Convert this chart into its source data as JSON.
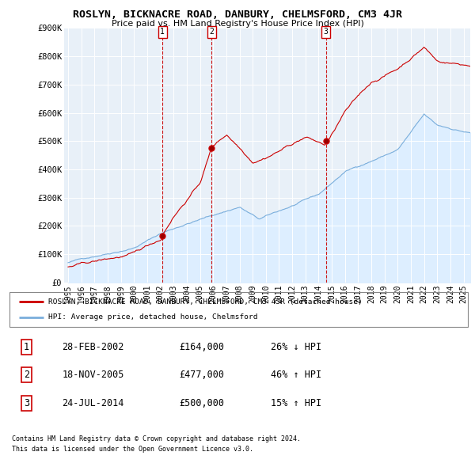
{
  "title": "ROSLYN, BICKNACRE ROAD, DANBURY, CHELMSFORD, CM3 4JR",
  "subtitle": "Price paid vs. HM Land Registry's House Price Index (HPI)",
  "sale_year_floats": [
    2002.16,
    2005.88,
    2014.56
  ],
  "sale_prices": [
    164000,
    477000,
    500000
  ],
  "sale_labels": [
    "1",
    "2",
    "3"
  ],
  "sale_pct": [
    "26% ↓ HPI",
    "46% ↑ HPI",
    "15% ↑ HPI"
  ],
  "sale_date_labels": [
    "28-FEB-2002",
    "18-NOV-2005",
    "24-JUL-2014"
  ],
  "sale_price_labels": [
    "£164,000",
    "£477,000",
    "£500,000"
  ],
  "legend_property": "ROSLYN, BICKNACRE ROAD, DANBURY, CHELMSFORD, CM3 4JR (detached house)",
  "legend_hpi": "HPI: Average price, detached house, Chelmsford",
  "footer1": "Contains HM Land Registry data © Crown copyright and database right 2024.",
  "footer2": "This data is licensed under the Open Government Licence v3.0.",
  "property_color": "#cc0000",
  "hpi_color": "#7aaedc",
  "hpi_fill_color": "#ddeeff",
  "background_color": "#ffffff",
  "ylim": [
    0,
    900000
  ],
  "yticks": [
    0,
    100000,
    200000,
    300000,
    400000,
    500000,
    600000,
    700000,
    800000,
    900000
  ],
  "ytick_labels": [
    "£0",
    "£100K",
    "£200K",
    "£300K",
    "£400K",
    "£500K",
    "£600K",
    "£700K",
    "£800K",
    "£900K"
  ],
  "xlim_start": 1994.7,
  "xlim_end": 2025.5,
  "xticks": [
    1995,
    1996,
    1997,
    1998,
    1999,
    2000,
    2001,
    2002,
    2003,
    2004,
    2005,
    2006,
    2007,
    2008,
    2009,
    2010,
    2011,
    2012,
    2013,
    2014,
    2015,
    2016,
    2017,
    2018,
    2019,
    2020,
    2021,
    2022,
    2023,
    2024,
    2025
  ],
  "chart_bg": "#e8f0f8"
}
